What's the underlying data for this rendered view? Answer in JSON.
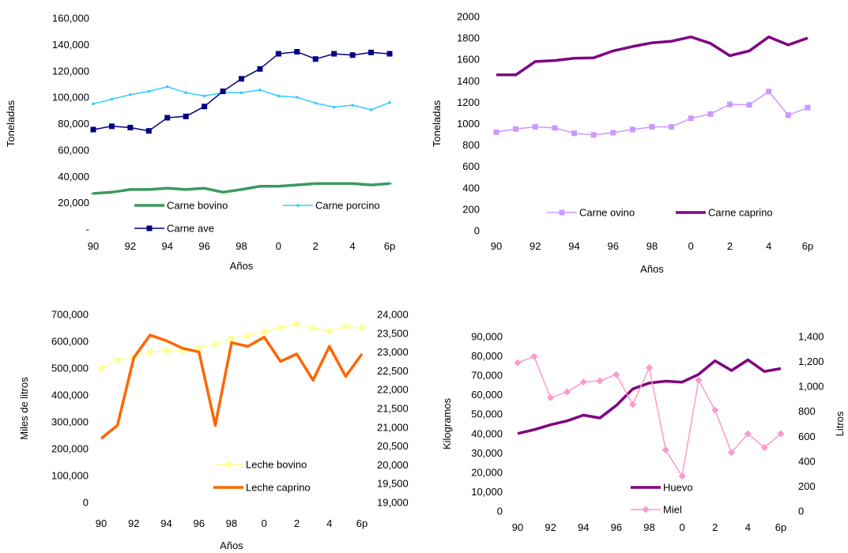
{
  "chart_data": [
    {
      "type": "line",
      "categories": [
        "90",
        "91",
        "92",
        "93",
        "94",
        "95",
        "96",
        "97",
        "98",
        "99",
        "0",
        "1",
        "2",
        "3",
        "4",
        "5",
        "6p"
      ],
      "tick_labels": [
        "90",
        "92",
        "94",
        "96",
        "98",
        "0",
        "2",
        "4",
        "6p"
      ],
      "xlabel": "Años",
      "ylabel": "Toneladas",
      "ylim": [
        0,
        160000
      ],
      "y_ticks": [
        "-",
        "20,000",
        "40,000",
        "60,000",
        "80,000",
        "100,000",
        "120,000",
        "140,000",
        "160,000"
      ],
      "grid": false,
      "legend_position": "bottom-inside",
      "series": [
        {
          "name": "Carne bovino",
          "color": "#3a9a5f",
          "marker": "dash",
          "values": [
            27000,
            28000,
            30000,
            30000,
            31000,
            30000,
            31000,
            28000,
            30000,
            32500,
            32500,
            33500,
            34500,
            34500,
            34500,
            33500,
            34500
          ]
        },
        {
          "name": "Carne porcino",
          "color": "#33ccff",
          "marker": "dot",
          "values": [
            95000,
            98500,
            102000,
            104500,
            108000,
            103500,
            101000,
            103500,
            103500,
            105500,
            101000,
            100000,
            95500,
            92500,
            94000,
            90500,
            96000
          ]
        },
        {
          "name": "Carne ave",
          "color": "#000080",
          "marker": "square",
          "values": [
            75500,
            78000,
            77000,
            74500,
            84500,
            85500,
            93000,
            104500,
            114000,
            121500,
            133000,
            134500,
            129000,
            133000,
            132000,
            134000,
            133000
          ]
        }
      ]
    },
    {
      "type": "line",
      "categories": [
        "90",
        "91",
        "92",
        "93",
        "94",
        "95",
        "96",
        "97",
        "98",
        "99",
        "0",
        "1",
        "2",
        "3",
        "4",
        "5",
        "6p"
      ],
      "tick_labels": [
        "90",
        "92",
        "94",
        "96",
        "98",
        "0",
        "2",
        "4",
        "6p"
      ],
      "xlabel": "Años",
      "ylabel": "Toneladas",
      "ylim": [
        0,
        2000
      ],
      "y_ticks": [
        "0",
        "200",
        "400",
        "600",
        "800",
        "1000",
        "1200",
        "1400",
        "1600",
        "1800",
        "2000"
      ],
      "grid": false,
      "legend_position": "bottom-inside",
      "series": [
        {
          "name": "Carne ovino",
          "color": "#cc99ff",
          "marker": "square",
          "values": [
            920,
            950,
            970,
            960,
            910,
            895,
            915,
            945,
            970,
            970,
            1050,
            1090,
            1180,
            1175,
            1300,
            1080,
            1150
          ]
        },
        {
          "name": "Carne caprino",
          "color": "#800080",
          "marker": "none",
          "values": [
            1455,
            1455,
            1580,
            1590,
            1610,
            1615,
            1680,
            1720,
            1755,
            1770,
            1810,
            1750,
            1635,
            1680,
            1810,
            1735,
            1800
          ]
        }
      ]
    },
    {
      "type": "line",
      "categories": [
        "90",
        "91",
        "92",
        "93",
        "94",
        "95",
        "96",
        "97",
        "98",
        "99",
        "0",
        "1",
        "2",
        "3",
        "4",
        "5",
        "6p"
      ],
      "tick_labels": [
        "90",
        "92",
        "94",
        "96",
        "98",
        "0",
        "2",
        "4",
        "6p"
      ],
      "xlabel": "Años",
      "ylabel": "Miles de litros",
      "ylim": [
        0,
        700000
      ],
      "y_ticks": [
        "0",
        "100,000",
        "200,000",
        "300,000",
        "400,000",
        "500,000",
        "600,000",
        "700,000"
      ],
      "y2lim": [
        19000,
        24000
      ],
      "y2_ticks": [
        "19,000",
        "19,500",
        "20,000",
        "20,500",
        "21,000",
        "21,500",
        "22,000",
        "22,500",
        "23,000",
        "23,500",
        "24,000"
      ],
      "grid": false,
      "legend_position": "bottom-inside",
      "series": [
        {
          "name": "Leche bovino",
          "color": "#ffff99",
          "marker": "square",
          "axis": "left",
          "values": [
            500000,
            530000,
            540000,
            560000,
            565000,
            565000,
            575000,
            590000,
            610000,
            620000,
            635000,
            650000,
            665000,
            650000,
            638000,
            655000,
            650000
          ]
        },
        {
          "name": "Leche caprino",
          "color": "#ff6600",
          "marker": "none",
          "axis": "right",
          "values": [
            20700,
            21050,
            22850,
            23450,
            23300,
            23100,
            23000,
            21050,
            23250,
            23150,
            23400,
            22750,
            22950,
            22250,
            23150,
            22350,
            22950
          ]
        }
      ]
    },
    {
      "type": "line",
      "categories": [
        "90",
        "91",
        "92",
        "93",
        "94",
        "95",
        "96",
        "97",
        "98",
        "99",
        "0",
        "1",
        "2",
        "3",
        "4",
        "5",
        "6p"
      ],
      "tick_labels": [
        "90",
        "92",
        "94",
        "96",
        "98",
        "0",
        "2",
        "4",
        "6p"
      ],
      "xlabel": "",
      "ylabel": "Kilogramos",
      "ylim": [
        0,
        90000
      ],
      "y_ticks": [
        "0",
        "10,000",
        "20,000",
        "30,000",
        "40,000",
        "50,000",
        "60,000",
        "70,000",
        "80,000",
        "90,000"
      ],
      "y2label": "Litros",
      "y2lim": [
        0,
        1400
      ],
      "y2_ticks": [
        "0",
        "200",
        "400",
        "600",
        "800",
        "1,000",
        "1,200",
        "1,400"
      ],
      "grid": false,
      "legend_position": "bottom-inside",
      "series": [
        {
          "name": "Huevo",
          "color": "#800080",
          "marker": "none",
          "axis": "left",
          "values": [
            40000,
            42000,
            44500,
            46500,
            49500,
            48000,
            54500,
            63000,
            66000,
            67000,
            66500,
            70500,
            77500,
            72500,
            78000,
            72000,
            73500
          ]
        },
        {
          "name": "Miel",
          "color": "#ff99cc",
          "marker": "diamond",
          "axis": "right",
          "values": [
            1190,
            1240,
            910,
            955,
            1035,
            1045,
            1095,
            855,
            1150,
            490,
            280,
            1050,
            810,
            470,
            620,
            510,
            620
          ]
        }
      ]
    }
  ]
}
